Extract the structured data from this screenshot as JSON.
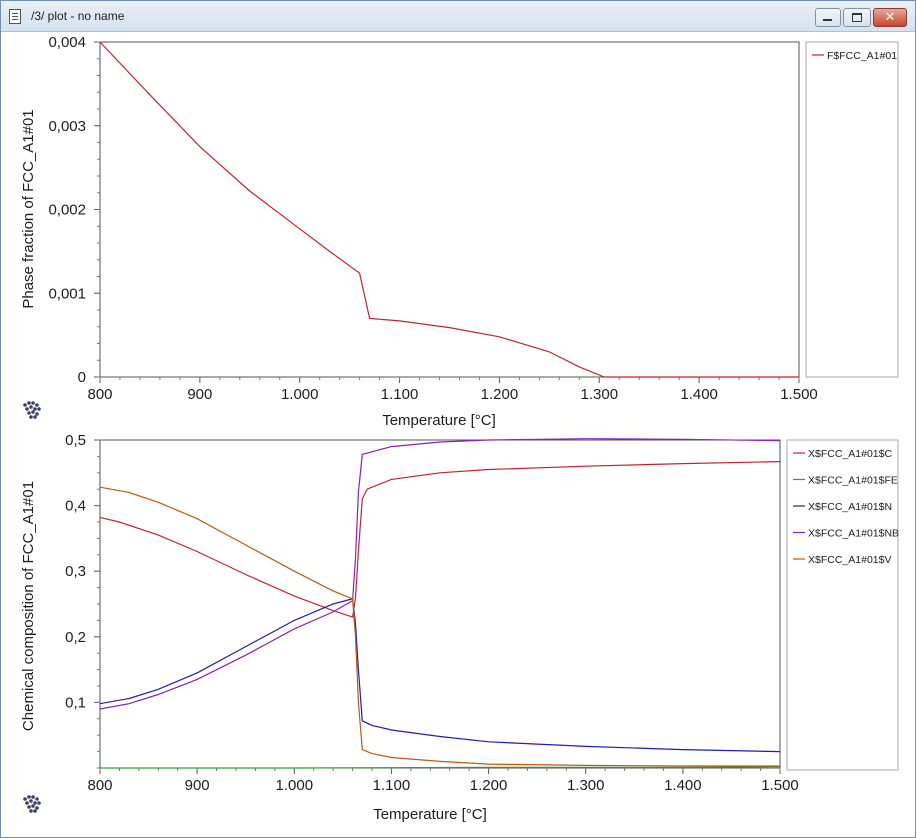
{
  "window": {
    "title": "/3/ plot - no name",
    "close_glyph": "✕"
  },
  "chart_data": [
    {
      "type": "line",
      "xlabel": "Temperature [°C]",
      "ylabel": "Phase fraction of FCC_A1#01",
      "xlim": [
        800,
        1500
      ],
      "ylim": [
        0,
        0.004
      ],
      "xticks": [
        "800",
        "900",
        "1.000",
        "1.100",
        "1.200",
        "1.300",
        "1.400",
        "1.500"
      ],
      "yticks": [
        "0",
        "0,001",
        "0,002",
        "0,003",
        "0,004"
      ],
      "legend_position": "right",
      "series": [
        {
          "name": "F$FCC_A1#01",
          "color": "#c0262d",
          "x": [
            800,
            850,
            900,
            950,
            1000,
            1030,
            1060,
            1070,
            1100,
            1150,
            1200,
            1250,
            1280,
            1305,
            1400,
            1500
          ],
          "y": [
            0.004,
            0.00337,
            0.00275,
            0.00222,
            0.00177,
            0.0015,
            0.00124,
            0.0007,
            0.00067,
            0.00059,
            0.00048,
            0.0003,
            0.00012,
            0.0,
            0.0,
            0.0
          ]
        }
      ]
    },
    {
      "type": "line",
      "xlabel": "Temperature [°C]",
      "ylabel": "Chemical composition of FCC_A1#01",
      "xlim": [
        800,
        1500
      ],
      "ylim": [
        0,
        0.5
      ],
      "xticks": [
        "800",
        "900",
        "1.000",
        "1.100",
        "1.200",
        "1.300",
        "1.400",
        "1.500"
      ],
      "yticks": [
        "0,1",
        "0,2",
        "0,3",
        "0,4",
        "0,5"
      ],
      "legend_position": "right",
      "series": [
        {
          "name": "X$FCC_A1#01$C",
          "color": "#c0262d",
          "x": [
            800,
            820,
            860,
            900,
            950,
            1000,
            1040,
            1060,
            1063,
            1066,
            1070,
            1075,
            1100,
            1150,
            1200,
            1300,
            1400,
            1500
          ],
          "y": [
            0.382,
            0.375,
            0.355,
            0.33,
            0.295,
            0.262,
            0.24,
            0.23,
            0.26,
            0.33,
            0.41,
            0.425,
            0.44,
            0.45,
            0.455,
            0.46,
            0.464,
            0.467
          ]
        },
        {
          "name": "X$FCC_A1#01$FE",
          "color": "#2ca02c",
          "x": [
            800,
            1000,
            1200,
            1400,
            1500
          ],
          "y": [
            0.0,
            0.0,
            0.001,
            0.001,
            0.002
          ]
        },
        {
          "name": "X$FCC_A1#01$N",
          "color": "#1f1fb0",
          "x": [
            800,
            830,
            860,
            900,
            950,
            1000,
            1040,
            1060,
            1063,
            1066,
            1070,
            1080,
            1100,
            1150,
            1200,
            1300,
            1400,
            1500
          ],
          "y": [
            0.098,
            0.106,
            0.12,
            0.145,
            0.185,
            0.225,
            0.25,
            0.258,
            0.22,
            0.15,
            0.072,
            0.065,
            0.058,
            0.048,
            0.04,
            0.033,
            0.028,
            0.025
          ]
        },
        {
          "name": "X$FCC_A1#01$NB",
          "color": "#8b1fbf",
          "x": [
            800,
            830,
            860,
            900,
            950,
            1000,
            1040,
            1060,
            1063,
            1066,
            1070,
            1080,
            1100,
            1150,
            1200,
            1300,
            1400,
            1500
          ],
          "y": [
            0.09,
            0.098,
            0.112,
            0.135,
            0.172,
            0.212,
            0.238,
            0.255,
            0.32,
            0.42,
            0.478,
            0.482,
            0.49,
            0.497,
            0.5,
            0.502,
            0.501,
            0.499
          ]
        },
        {
          "name": "X$FCC_A1#01$V",
          "color": "#c05a10",
          "x": [
            800,
            830,
            860,
            900,
            950,
            1000,
            1040,
            1060,
            1063,
            1066,
            1070,
            1080,
            1100,
            1150,
            1200,
            1300,
            1400,
            1500
          ],
          "y": [
            0.428,
            0.42,
            0.405,
            0.38,
            0.34,
            0.3,
            0.27,
            0.258,
            0.2,
            0.1,
            0.028,
            0.022,
            0.016,
            0.01,
            0.006,
            0.004,
            0.003,
            0.003
          ]
        }
      ]
    }
  ]
}
